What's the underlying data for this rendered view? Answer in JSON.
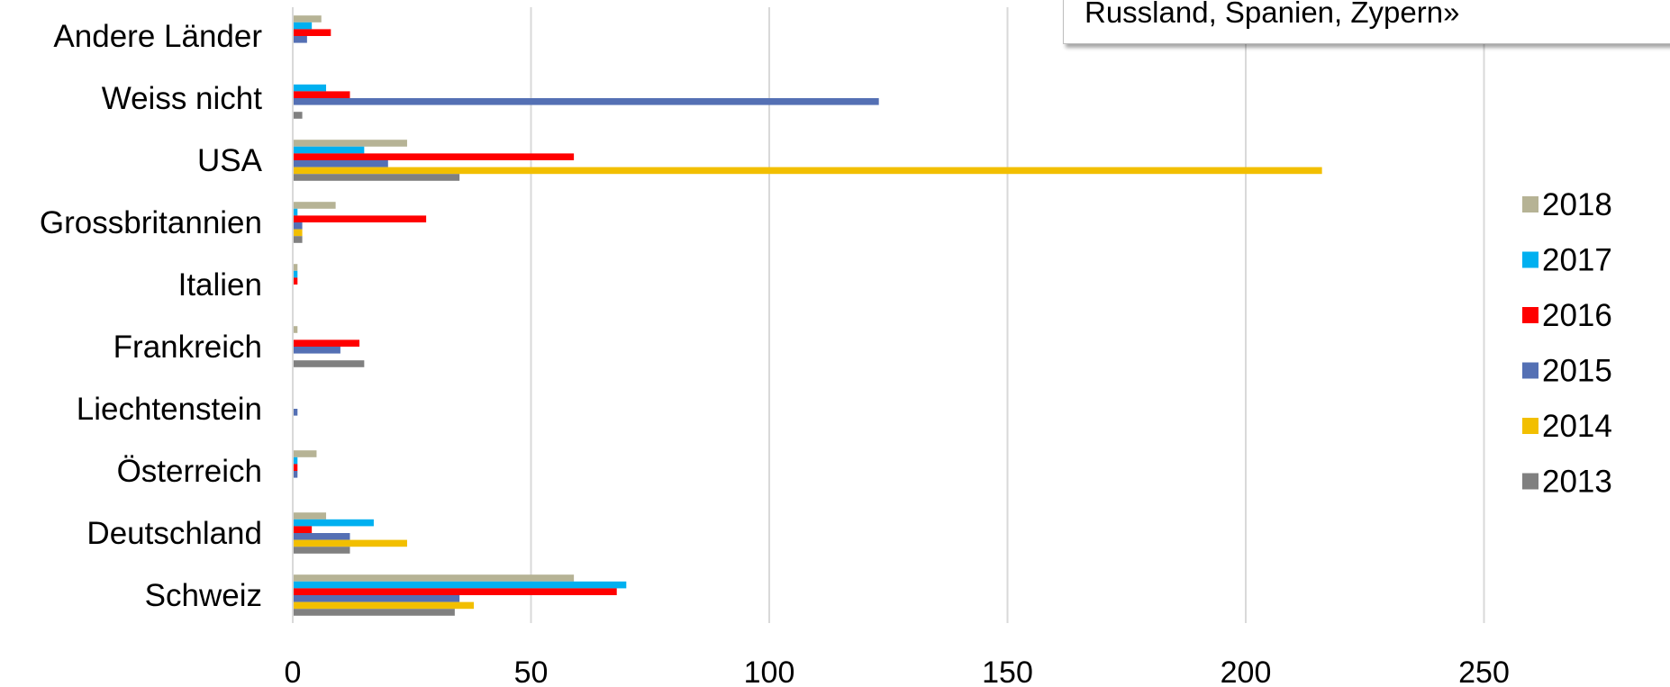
{
  "chart_data": {
    "type": "bar",
    "orientation": "horizontal",
    "categories": [
      "Andere Länder",
      "Weiss nicht",
      "USA",
      "Grossbritannien",
      "Italien",
      "Frankreich",
      "Liechtenstein",
      "Österreich",
      "Deutschland",
      "Schweiz"
    ],
    "series": [
      {
        "name": "2018",
        "color": "#b6b395",
        "values": [
          6,
          0,
          24,
          9,
          1,
          1,
          0,
          5,
          7,
          59
        ]
      },
      {
        "name": "2017",
        "color": "#00b0f0",
        "values": [
          4,
          7,
          15,
          1,
          1,
          0,
          0,
          1,
          17,
          70
        ]
      },
      {
        "name": "2016",
        "color": "#ff0000",
        "values": [
          8,
          12,
          59,
          28,
          1,
          14,
          0,
          1,
          4,
          68
        ]
      },
      {
        "name": "2015",
        "color": "#5470b4",
        "values": [
          3,
          123,
          20,
          2,
          0,
          10,
          1,
          1,
          12,
          35
        ]
      },
      {
        "name": "2014",
        "color": "#f2bf00",
        "values": [
          0,
          0,
          216,
          2,
          0,
          0,
          0,
          0,
          24,
          38
        ]
      },
      {
        "name": "2013",
        "color": "#808080",
        "values": [
          0,
          2,
          35,
          2,
          0,
          15,
          0,
          0,
          12,
          34
        ]
      }
    ],
    "xticks": [
      "0",
      "50",
      "100",
      "150",
      "200",
      "250"
    ],
    "xlim": [
      0,
      290
    ],
    "grid": true,
    "legend_position": "right",
    "legend_order": [
      "2018",
      "2017",
      "2016",
      "2015",
      "2014",
      "2013"
    ]
  },
  "note": {
    "text": "Russland, Spanien, Zypern»"
  }
}
